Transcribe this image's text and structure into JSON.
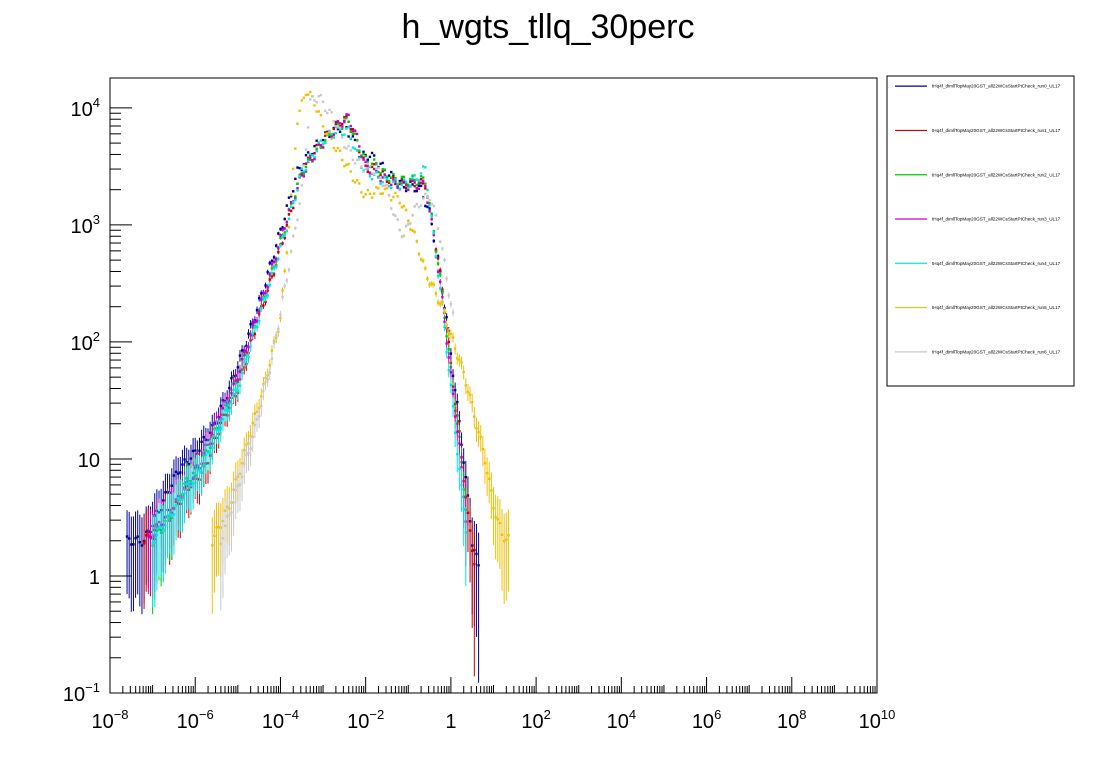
{
  "chart_data": {
    "type": "scatter",
    "title": "h_wgts_tllq_30perc",
    "xlabel": "",
    "ylabel": "",
    "x_scale": "log",
    "y_scale": "log",
    "xlim": [
      1e-08,
      10000000000.0
    ],
    "ylim": [
      0.1,
      18000
    ],
    "x_ticks": [
      {
        "base": "10",
        "exp": "−8"
      },
      {
        "base": "10",
        "exp": "−6"
      },
      {
        "base": "10",
        "exp": "−4"
      },
      {
        "base": "10",
        "exp": "−2"
      },
      {
        "base": "1",
        "exp": ""
      },
      {
        "base": "10",
        "exp": "2"
      },
      {
        "base": "10",
        "exp": "4"
      },
      {
        "base": "10",
        "exp": "6"
      },
      {
        "base": "10",
        "exp": "8"
      },
      {
        "base": "10",
        "exp": "10"
      }
    ],
    "y_ticks": [
      {
        "base": "10",
        "exp": "−1"
      },
      {
        "base": "1",
        "exp": ""
      },
      {
        "base": "10",
        "exp": ""
      },
      {
        "base": "10",
        "exp": "2"
      },
      {
        "base": "10",
        "exp": "3"
      },
      {
        "base": "10",
        "exp": "4"
      }
    ],
    "legend_position": "right",
    "grid": false,
    "series": [
      {
        "name": "tHq4f_dimllTopMay20GST_all22WCsStartPtCheck_run0_UL17",
        "color": "#000099",
        "points": [
          [
            -7.6,
            0.3
          ],
          [
            -7.2,
            0.3
          ],
          [
            -6.8,
            0.6
          ],
          [
            -6.4,
            0.9
          ],
          [
            -6.0,
            1.05
          ],
          [
            -5.6,
            1.25
          ],
          [
            -5.2,
            1.6
          ],
          [
            -4.8,
            2.0
          ],
          [
            -4.4,
            2.45
          ],
          [
            -4.0,
            2.95
          ],
          [
            -3.6,
            3.45
          ],
          [
            -3.3,
            3.62
          ],
          [
            -3.1,
            3.7
          ],
          [
            -2.9,
            3.77
          ],
          [
            -2.7,
            3.82
          ],
          [
            -2.5,
            3.85
          ],
          [
            -2.3,
            3.73
          ],
          [
            -2.1,
            3.58
          ],
          [
            -1.9,
            3.6
          ],
          [
            -1.7,
            3.53
          ],
          [
            -1.5,
            3.45
          ],
          [
            -1.3,
            3.38
          ],
          [
            -1.1,
            3.33
          ],
          [
            -0.9,
            3.33
          ],
          [
            -0.7,
            3.3
          ],
          [
            -0.5,
            3.1
          ],
          [
            -0.3,
            2.7
          ],
          [
            -0.1,
            2.2
          ],
          [
            0.1,
            1.6
          ],
          [
            0.3,
            1.0
          ],
          [
            0.5,
            0.3
          ],
          [
            0.7,
            0.0
          ]
        ]
      },
      {
        "name": "tHq4f_dimllTopMay20GST_all22WCsStartPtCheck_run1_UL17",
        "color": "#cc0000",
        "points": [
          [
            -7.2,
            0.3
          ],
          [
            -6.6,
            0.5
          ],
          [
            -6.2,
            0.75
          ],
          [
            -5.8,
            0.9
          ],
          [
            -5.4,
            1.3
          ],
          [
            -5.0,
            1.6
          ],
          [
            -4.6,
            2.1
          ],
          [
            -4.2,
            2.55
          ],
          [
            -3.8,
            3.05
          ],
          [
            -3.5,
            3.45
          ],
          [
            -3.2,
            3.62
          ],
          [
            -3.0,
            3.72
          ],
          [
            -2.8,
            3.8
          ],
          [
            -2.6,
            3.88
          ],
          [
            -2.4,
            3.9
          ],
          [
            -2.2,
            3.72
          ],
          [
            -2.0,
            3.48
          ],
          [
            -1.8,
            3.48
          ],
          [
            -1.6,
            3.42
          ],
          [
            -1.4,
            3.38
          ],
          [
            -1.2,
            3.35
          ],
          [
            -1.0,
            3.35
          ],
          [
            -0.8,
            3.35
          ],
          [
            -0.6,
            3.35
          ],
          [
            -0.4,
            2.95
          ],
          [
            -0.2,
            2.45
          ],
          [
            0.0,
            1.8
          ],
          [
            0.2,
            1.2
          ],
          [
            0.4,
            0.5
          ],
          [
            0.6,
            0.0
          ]
        ]
      },
      {
        "name": "tHq4f_dimllTopMay20GST_all22WCsStartPtCheck_run2_UL17",
        "color": "#00cc00",
        "points": [
          [
            -7.0,
            0.3
          ],
          [
            -6.6,
            0.5
          ],
          [
            -6.2,
            0.8
          ],
          [
            -5.8,
            1.0
          ],
          [
            -5.4,
            1.35
          ],
          [
            -5.0,
            1.7
          ],
          [
            -4.6,
            2.15
          ],
          [
            -4.2,
            2.6
          ],
          [
            -3.8,
            3.1
          ],
          [
            -3.5,
            3.45
          ],
          [
            -3.2,
            3.6
          ],
          [
            -3.0,
            3.7
          ],
          [
            -2.8,
            3.78
          ],
          [
            -2.6,
            3.85
          ],
          [
            -2.4,
            3.88
          ],
          [
            -2.2,
            3.7
          ],
          [
            -2.0,
            3.55
          ],
          [
            -1.8,
            3.52
          ],
          [
            -1.6,
            3.45
          ],
          [
            -1.4,
            3.4
          ],
          [
            -1.2,
            3.38
          ],
          [
            -1.0,
            3.38
          ],
          [
            -0.8,
            3.38
          ],
          [
            -0.6,
            3.38
          ],
          [
            -0.4,
            2.95
          ],
          [
            -0.2,
            2.4
          ],
          [
            0.0,
            1.75
          ],
          [
            0.2,
            1.15
          ],
          [
            0.4,
            0.4
          ]
        ]
      },
      {
        "name": "tHq4f_dimllTopMay20GST_all22WCsStartPtCheck_run3_UL17",
        "color": "#cc00cc",
        "points": [
          [
            -7.1,
            0.3
          ],
          [
            -6.7,
            0.5
          ],
          [
            -6.3,
            0.7
          ],
          [
            -5.9,
            0.95
          ],
          [
            -5.5,
            1.3
          ],
          [
            -5.1,
            1.6
          ],
          [
            -4.7,
            2.05
          ],
          [
            -4.3,
            2.5
          ],
          [
            -3.9,
            3.0
          ],
          [
            -3.5,
            3.42
          ],
          [
            -3.2,
            3.6
          ],
          [
            -3.0,
            3.7
          ],
          [
            -2.8,
            3.78
          ],
          [
            -2.6,
            3.87
          ],
          [
            -2.4,
            3.92
          ],
          [
            -2.2,
            3.74
          ],
          [
            -2.0,
            3.5
          ],
          [
            -1.8,
            3.45
          ],
          [
            -1.6,
            3.4
          ],
          [
            -1.4,
            3.36
          ],
          [
            -1.2,
            3.34
          ],
          [
            -1.0,
            3.34
          ],
          [
            -0.8,
            3.34
          ],
          [
            -0.6,
            3.34
          ],
          [
            -0.4,
            2.9
          ],
          [
            -0.2,
            2.35
          ],
          [
            0.0,
            1.7
          ],
          [
            0.2,
            1.1
          ],
          [
            0.4,
            0.3
          ]
        ]
      },
      {
        "name": "tHq4f_dimllTopMay20GST_all22WCsStartPtCheck_run4_UL17",
        "color": "#00e6e6",
        "points": [
          [
            -7.0,
            0.3
          ],
          [
            -6.6,
            0.5
          ],
          [
            -6.2,
            0.75
          ],
          [
            -5.8,
            0.95
          ],
          [
            -5.4,
            1.3
          ],
          [
            -5.0,
            1.6
          ],
          [
            -4.6,
            2.1
          ],
          [
            -4.2,
            2.55
          ],
          [
            -3.8,
            3.05
          ],
          [
            -3.5,
            3.45
          ],
          [
            -3.2,
            3.62
          ],
          [
            -3.0,
            3.72
          ],
          [
            -2.8,
            3.78
          ],
          [
            -2.6,
            3.8
          ],
          [
            -2.4,
            3.8
          ],
          [
            -2.2,
            3.6
          ],
          [
            -2.0,
            3.45
          ],
          [
            -1.8,
            3.42
          ],
          [
            -1.6,
            3.38
          ],
          [
            -1.4,
            3.35
          ],
          [
            -1.2,
            3.35
          ],
          [
            -1.0,
            3.35
          ],
          [
            -0.8,
            3.4
          ],
          [
            -0.6,
            3.48
          ],
          [
            -0.4,
            2.9
          ],
          [
            -0.2,
            2.3
          ],
          [
            0.0,
            1.6
          ],
          [
            0.2,
            0.9
          ],
          [
            0.4,
            0.25
          ]
        ]
      },
      {
        "name": "tHq4f_dimllTopMay20GST_all22WCsStartPtCheck_run5_UL17",
        "color": "#f0c000",
        "points": [
          [
            -5.6,
            0.3
          ],
          [
            -5.2,
            0.6
          ],
          [
            -4.8,
            1.1
          ],
          [
            -4.4,
            1.6
          ],
          [
            -4.0,
            2.2
          ],
          [
            -3.8,
            3.0
          ],
          [
            -3.6,
            3.9
          ],
          [
            -3.4,
            4.15
          ],
          [
            -3.2,
            4.05
          ],
          [
            -3.0,
            3.85
          ],
          [
            -2.8,
            3.72
          ],
          [
            -2.6,
            3.6
          ],
          [
            -2.4,
            3.48
          ],
          [
            -2.2,
            3.35
          ],
          [
            -2.0,
            3.25
          ],
          [
            -1.8,
            3.28
          ],
          [
            -1.6,
            3.3
          ],
          [
            -1.4,
            3.25
          ],
          [
            -1.2,
            3.22
          ],
          [
            -1.0,
            3.05
          ],
          [
            -0.8,
            2.85
          ],
          [
            -0.6,
            2.6
          ],
          [
            -0.4,
            2.45
          ],
          [
            -0.2,
            2.3
          ],
          [
            0.0,
            2.05
          ],
          [
            0.2,
            1.85
          ],
          [
            0.4,
            1.6
          ],
          [
            0.6,
            1.3
          ],
          [
            0.8,
            1.0
          ],
          [
            1.0,
            0.6
          ],
          [
            1.2,
            0.35
          ],
          [
            1.4,
            0.3
          ]
        ]
      },
      {
        "name": "tHq4f_dimllTopMay20GST_all22WCsStartPtCheck_run6_UL17",
        "color": "#c8c8c8",
        "points": [
          [
            -5.4,
            0.3
          ],
          [
            -5.0,
            0.75
          ],
          [
            -4.6,
            1.25
          ],
          [
            -4.2,
            1.85
          ],
          [
            -3.8,
            2.65
          ],
          [
            -3.5,
            3.3
          ],
          [
            -3.3,
            4.05
          ],
          [
            -3.1,
            4.1
          ],
          [
            -2.9,
            3.98
          ],
          [
            -2.7,
            3.88
          ],
          [
            -2.5,
            3.7
          ],
          [
            -2.3,
            3.58
          ],
          [
            -2.1,
            3.5
          ],
          [
            -1.9,
            3.48
          ],
          [
            -1.7,
            3.45
          ],
          [
            -1.5,
            3.3
          ],
          [
            -1.3,
            3.05
          ],
          [
            -1.1,
            2.9
          ],
          [
            -0.9,
            3.1
          ],
          [
            -0.7,
            3.2
          ],
          [
            -0.5,
            3.25
          ],
          [
            -0.3,
            3.0
          ],
          [
            -0.1,
            2.55
          ],
          [
            0.1,
            2.1
          ]
        ]
      }
    ]
  }
}
